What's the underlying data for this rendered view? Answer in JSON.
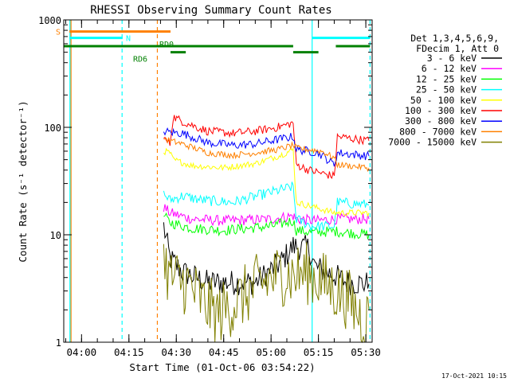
{
  "footer_timestamp": "17-Oct-2021 10:15",
  "chart_data": {
    "type": "line",
    "title": "RHESSI Observing Summary Count Rates",
    "xlabel": "Start Time (01-Oct-06 03:54:22)",
    "ylabel": "Count Rate (s⁻¹ detector⁻¹)",
    "yscale": "log",
    "ylim": [
      1,
      1000
    ],
    "xlim": [
      "03:54:22",
      "05:32:00"
    ],
    "x_ticks": [
      "04:00",
      "04:15",
      "04:30",
      "04:45",
      "05:00",
      "05:15",
      "05:30"
    ],
    "y_ticks": [
      {
        "value": 1,
        "label": "1"
      },
      {
        "value": 10,
        "label": "10"
      },
      {
        "value": 100,
        "label": "100"
      },
      {
        "value": 1000,
        "label": "1000"
      }
    ],
    "legend_header": [
      "Det 1,3,4,5,6,9,",
      "FDecim 1, Att 0"
    ],
    "legend_position": "right",
    "flag_bars": [
      {
        "label": "S",
        "color": "#ff8000",
        "level": 780,
        "segments": [
          [
            "03:56:10",
            "04:28:10"
          ]
        ]
      },
      {
        "label": "N",
        "color": "#00ffff",
        "level": 680,
        "segments": [
          [
            "03:56:10",
            "04:13:00"
          ],
          [
            "05:13:00",
            "05:31:20"
          ]
        ]
      },
      {
        "label": "RD0",
        "color": "#008000",
        "level": 570,
        "segments": [
          [
            "03:54:22",
            "05:07:00"
          ],
          [
            "05:20:30",
            "05:31:20"
          ]
        ]
      },
      {
        "label": "RD6",
        "color": "#008000",
        "level": 500,
        "segments": [
          [
            "04:28:10",
            "04:33:00"
          ],
          [
            "05:07:00",
            "05:15:00"
          ]
        ]
      }
    ],
    "vlines": [
      {
        "time": "03:56:20",
        "color": "#00ffff",
        "style": "solid"
      },
      {
        "time": "03:56:40",
        "color": "#ff8000",
        "style": "solid"
      },
      {
        "time": "04:12:50",
        "color": "#00ffff",
        "style": "dashed"
      },
      {
        "time": "04:24:00",
        "color": "#ff8000",
        "style": "dashed"
      },
      {
        "time": "05:13:00",
        "color": "#00ffff",
        "style": "solid"
      },
      {
        "time": "05:31:20",
        "color": "#00ffff",
        "style": "dashed"
      }
    ],
    "series": [
      {
        "name": "3 - 6 keV",
        "color": "#000000",
        "noise": 0.12,
        "points": [
          [
            "04:26:00",
            12
          ],
          [
            "04:28:00",
            6
          ],
          [
            "04:32:00",
            4.5
          ],
          [
            "04:40:00",
            3.6
          ],
          [
            "04:55:00",
            3.6
          ],
          [
            "05:03:00",
            5.5
          ],
          [
            "05:07:00",
            7.8
          ],
          [
            "05:12:00",
            7.5
          ],
          [
            "05:14:00",
            5
          ],
          [
            "05:20:00",
            4.2
          ],
          [
            "05:24:00",
            3.6
          ],
          [
            "05:31:00",
            3.5
          ]
        ]
      },
      {
        "name": "6 - 12 keV",
        "color": "#ff00ff",
        "noise": 0.05,
        "points": [
          [
            "04:26:00",
            18
          ],
          [
            "04:28:00",
            16
          ],
          [
            "04:35:00",
            14
          ],
          [
            "04:45:00",
            13.5
          ],
          [
            "05:00:00",
            14
          ],
          [
            "05:07:00",
            15
          ],
          [
            "05:08:00",
            14
          ],
          [
            "05:14:00",
            13.5
          ],
          [
            "05:20:00",
            14
          ],
          [
            "05:31:00",
            14
          ]
        ]
      },
      {
        "name": "12 - 25 keV",
        "color": "#00ff00",
        "noise": 0.05,
        "points": [
          [
            "04:26:00",
            15
          ],
          [
            "04:28:00",
            13
          ],
          [
            "04:35:00",
            11.5
          ],
          [
            "04:45:00",
            11
          ],
          [
            "05:00:00",
            12
          ],
          [
            "05:07:00",
            13.5
          ],
          [
            "05:08:00",
            11
          ],
          [
            "05:13:00",
            10.5
          ],
          [
            "05:20:00",
            10.8
          ],
          [
            "05:31:00",
            10
          ]
        ]
      },
      {
        "name": "25 - 50 keV",
        "color": "#00ffff",
        "noise": 0.05,
        "points": [
          [
            "04:26:00",
            24
          ],
          [
            "04:28:00",
            21
          ],
          [
            "04:32:00",
            23
          ],
          [
            "04:38:00",
            21
          ],
          [
            "04:48:00",
            20
          ],
          [
            "04:58:00",
            24
          ],
          [
            "05:07:00",
            28
          ],
          [
            "05:08:00",
            14
          ],
          [
            "05:13:00",
            12
          ],
          [
            "05:20:00",
            12
          ],
          [
            "05:21:00",
            20
          ],
          [
            "05:31:00",
            19
          ]
        ]
      },
      {
        "name": "50 - 100 keV",
        "color": "#ffff00",
        "noise": 0.03,
        "points": [
          [
            "04:26:00",
            60
          ],
          [
            "04:28:00",
            58
          ],
          [
            "04:29:00",
            50
          ],
          [
            "04:35:00",
            44
          ],
          [
            "04:45:00",
            42
          ],
          [
            "04:55:00",
            46
          ],
          [
            "05:03:00",
            55
          ],
          [
            "05:07:00",
            62
          ],
          [
            "05:08:00",
            20
          ],
          [
            "05:14:00",
            18
          ],
          [
            "05:20:00",
            16
          ],
          [
            "05:31:00",
            16
          ]
        ]
      },
      {
        "name": "100 - 300 keV",
        "color": "#ff0000",
        "noise": 0.04,
        "points": [
          [
            "04:26:00",
            78
          ],
          [
            "04:28:00",
            70
          ],
          [
            "04:29:00",
            125
          ],
          [
            "04:33:00",
            110
          ],
          [
            "04:40:00",
            92
          ],
          [
            "04:48:00",
            88
          ],
          [
            "04:55:00",
            92
          ],
          [
            "05:02:00",
            100
          ],
          [
            "05:07:00",
            110
          ],
          [
            "05:08:00",
            45
          ],
          [
            "05:12:00",
            40
          ],
          [
            "05:20:00",
            35
          ],
          [
            "05:21:00",
            82
          ],
          [
            "05:31:00",
            75
          ]
        ]
      },
      {
        "name": "300 - 800 keV",
        "color": "#0000ff",
        "noise": 0.04,
        "points": [
          [
            "04:26:00",
            92
          ],
          [
            "04:28:00",
            90
          ],
          [
            "04:32:00",
            88
          ],
          [
            "04:40:00",
            72
          ],
          [
            "04:48:00",
            68
          ],
          [
            "04:55:00",
            70
          ],
          [
            "05:00:00",
            75
          ],
          [
            "05:07:00",
            82
          ],
          [
            "05:08:00",
            62
          ],
          [
            "05:12:00",
            60
          ],
          [
            "05:15:00",
            58
          ],
          [
            "05:20:00",
            45
          ],
          [
            "05:21:00",
            58
          ],
          [
            "05:31:00",
            54
          ]
        ]
      },
      {
        "name": "800 - 7000 keV",
        "color": "#ff8000",
        "noise": 0.03,
        "points": [
          [
            "04:26:00",
            80
          ],
          [
            "04:28:00",
            75
          ],
          [
            "04:32:00",
            70
          ],
          [
            "04:40:00",
            58
          ],
          [
            "04:48:00",
            55
          ],
          [
            "04:55:00",
            58
          ],
          [
            "05:02:00",
            62
          ],
          [
            "05:07:00",
            68
          ],
          [
            "05:08:00",
            64
          ],
          [
            "05:12:00",
            62
          ],
          [
            "05:16:00",
            60
          ],
          [
            "05:20:00",
            52
          ],
          [
            "05:21:00",
            45
          ],
          [
            "05:31:00",
            42
          ]
        ]
      },
      {
        "name": "7000 - 15000 keV",
        "color": "#808000",
        "noise": 0.3,
        "points": [
          [
            "04:26:00",
            6
          ],
          [
            "04:28:00",
            4
          ],
          [
            "04:34:00",
            3.4
          ],
          [
            "04:38:00",
            2.4
          ],
          [
            "04:43:00",
            1.8
          ],
          [
            "04:51:00",
            2.6
          ],
          [
            "04:55:00",
            3.3
          ],
          [
            "05:03:00",
            4.3
          ],
          [
            "05:07:00",
            4.2
          ],
          [
            "05:12:00",
            4.4
          ],
          [
            "05:20:00",
            3.1
          ],
          [
            "05:24:00",
            2.6
          ],
          [
            "05:30:00",
            1.5
          ],
          [
            "05:31:00",
            2
          ]
        ]
      }
    ]
  }
}
